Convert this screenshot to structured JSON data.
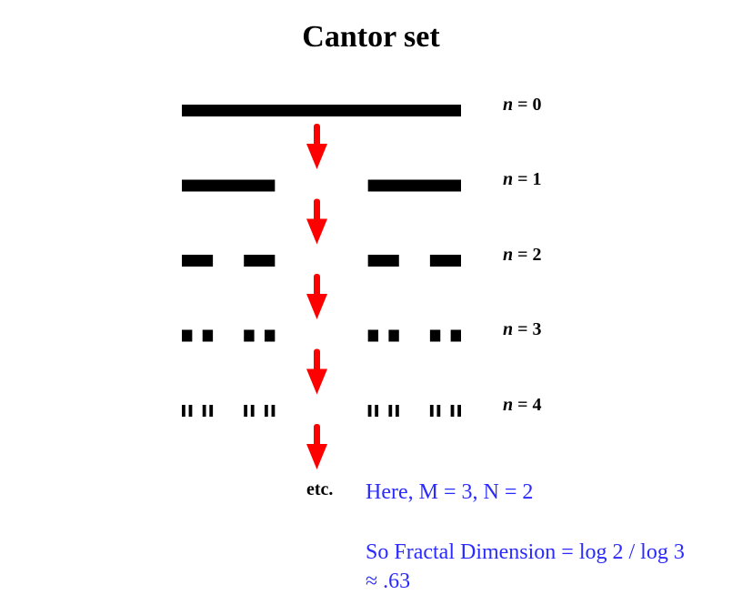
{
  "title": "Cantor set",
  "levels": [
    {
      "var": "n",
      "eq": " = 0",
      "n": 0
    },
    {
      "var": "n",
      "eq": " = 1",
      "n": 1
    },
    {
      "var": "n",
      "eq": " = 2",
      "n": 2
    },
    {
      "var": "n",
      "eq": " = 3",
      "n": 3
    },
    {
      "var": "n",
      "eq": " = 4",
      "n": 4
    }
  ],
  "etc_label": "etc.",
  "notes": {
    "line1": "Here, M = 3, N = 2",
    "line2": "So Fractal Dimension = log 2 / log 3",
    "line3": "≈ .63"
  },
  "colors": {
    "bars": "#000000",
    "arrows": "#ff0000",
    "notes": "#2b2bff"
  }
}
